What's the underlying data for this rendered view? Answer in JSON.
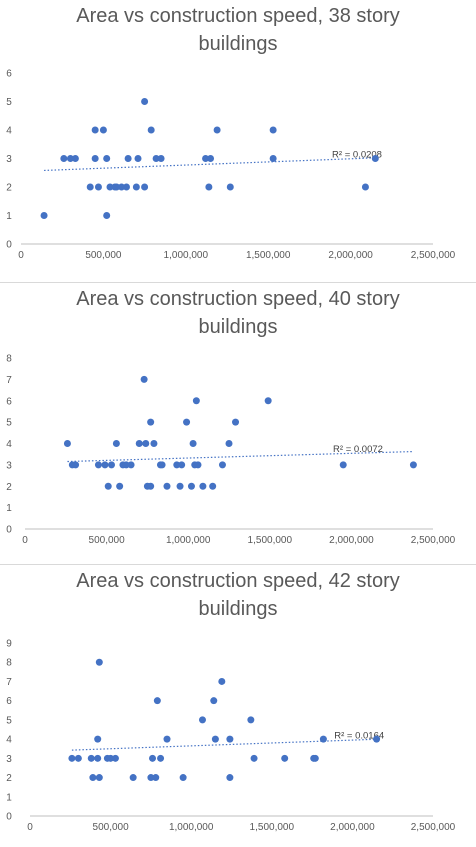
{
  "chart_data": [
    {
      "type": "scatter",
      "title_line1": "Area vs construction speed, 38 story",
      "title_line2": "buildings",
      "xlabel": "",
      "ylabel": "",
      "xlim": [
        0,
        2500000
      ],
      "ylim": [
        0,
        6
      ],
      "x_ticks": [
        "0",
        "500,000",
        "1,000,000",
        "1,500,000",
        "2,000,000",
        "2,500,000"
      ],
      "y_ticks": [
        "0",
        "1",
        "2",
        "3",
        "4",
        "5",
        "6"
      ],
      "grid": false,
      "trendline": {
        "type": "linear",
        "y_at_xmin": 2.55,
        "y_at_xmax": 3.1,
        "x_range": [
          140000,
          2150000
        ],
        "r2_label": "R² = 0.0208",
        "style": "dotted"
      },
      "points": [
        {
          "x": 140000,
          "y": 1
        },
        {
          "x": 260000,
          "y": 3
        },
        {
          "x": 300000,
          "y": 3
        },
        {
          "x": 330000,
          "y": 3
        },
        {
          "x": 420000,
          "y": 2
        },
        {
          "x": 450000,
          "y": 3
        },
        {
          "x": 450000,
          "y": 4
        },
        {
          "x": 470000,
          "y": 2
        },
        {
          "x": 500000,
          "y": 4
        },
        {
          "x": 520000,
          "y": 1
        },
        {
          "x": 520000,
          "y": 3
        },
        {
          "x": 540000,
          "y": 2
        },
        {
          "x": 570000,
          "y": 2
        },
        {
          "x": 580000,
          "y": 2
        },
        {
          "x": 610000,
          "y": 2
        },
        {
          "x": 640000,
          "y": 2
        },
        {
          "x": 650000,
          "y": 3
        },
        {
          "x": 700000,
          "y": 2
        },
        {
          "x": 710000,
          "y": 3
        },
        {
          "x": 750000,
          "y": 5
        },
        {
          "x": 750000,
          "y": 2
        },
        {
          "x": 790000,
          "y": 4
        },
        {
          "x": 820000,
          "y": 3
        },
        {
          "x": 850000,
          "y": 3
        },
        {
          "x": 1120000,
          "y": 3
        },
        {
          "x": 1140000,
          "y": 2
        },
        {
          "x": 1150000,
          "y": 3
        },
        {
          "x": 1190000,
          "y": 4
        },
        {
          "x": 1270000,
          "y": 2
        },
        {
          "x": 1530000,
          "y": 3
        },
        {
          "x": 1530000,
          "y": 4
        },
        {
          "x": 2090000,
          "y": 2
        },
        {
          "x": 2150000,
          "y": 3
        }
      ]
    },
    {
      "type": "scatter",
      "title_line1": "Area vs construction speed, 40 story",
      "title_line2": "buildings",
      "xlabel": "",
      "ylabel": "",
      "xlim": [
        0,
        2500000
      ],
      "ylim": [
        0,
        8
      ],
      "x_ticks": [
        "0",
        "500,000",
        "1,000,000",
        "1,500,000",
        "2,000,000",
        "2,500,000"
      ],
      "y_ticks": [
        "0",
        "1",
        "2",
        "3",
        "4",
        "5",
        "6",
        "7",
        "8"
      ],
      "grid": false,
      "trendline": {
        "type": "linear",
        "y_at_xmin": 3.1,
        "y_at_xmax": 3.65,
        "x_range": [
          260000,
          2380000
        ],
        "r2_label": "R² = 0.0072",
        "style": "dotted"
      },
      "points": [
        {
          "x": 260000,
          "y": 4
        },
        {
          "x": 290000,
          "y": 3
        },
        {
          "x": 310000,
          "y": 3
        },
        {
          "x": 450000,
          "y": 3
        },
        {
          "x": 490000,
          "y": 3
        },
        {
          "x": 510000,
          "y": 2
        },
        {
          "x": 530000,
          "y": 3
        },
        {
          "x": 560000,
          "y": 4
        },
        {
          "x": 580000,
          "y": 2
        },
        {
          "x": 600000,
          "y": 3
        },
        {
          "x": 620000,
          "y": 3
        },
        {
          "x": 650000,
          "y": 3
        },
        {
          "x": 700000,
          "y": 4
        },
        {
          "x": 730000,
          "y": 7
        },
        {
          "x": 740000,
          "y": 4
        },
        {
          "x": 750000,
          "y": 2
        },
        {
          "x": 770000,
          "y": 2
        },
        {
          "x": 770000,
          "y": 5
        },
        {
          "x": 790000,
          "y": 4
        },
        {
          "x": 830000,
          "y": 3
        },
        {
          "x": 840000,
          "y": 3
        },
        {
          "x": 870000,
          "y": 2
        },
        {
          "x": 930000,
          "y": 3
        },
        {
          "x": 950000,
          "y": 2
        },
        {
          "x": 960000,
          "y": 3
        },
        {
          "x": 990000,
          "y": 5
        },
        {
          "x": 1020000,
          "y": 2
        },
        {
          "x": 1030000,
          "y": 4
        },
        {
          "x": 1040000,
          "y": 3
        },
        {
          "x": 1050000,
          "y": 6
        },
        {
          "x": 1060000,
          "y": 3
        },
        {
          "x": 1090000,
          "y": 2
        },
        {
          "x": 1150000,
          "y": 2
        },
        {
          "x": 1210000,
          "y": 3
        },
        {
          "x": 1250000,
          "y": 4
        },
        {
          "x": 1290000,
          "y": 5
        },
        {
          "x": 1490000,
          "y": 6
        },
        {
          "x": 1950000,
          "y": 3
        },
        {
          "x": 2380000,
          "y": 3
        }
      ]
    },
    {
      "type": "scatter",
      "title_line1": "Area vs construction speed, 42 story",
      "title_line2": "buildings",
      "xlabel": "",
      "ylabel": "",
      "xlim": [
        0,
        2500000
      ],
      "ylim": [
        0,
        9
      ],
      "x_ticks": [
        "0",
        "500,000",
        "1,000,000",
        "1,500,000",
        "2,000,000",
        "2,500,000"
      ],
      "y_ticks": [
        "0",
        "1",
        "2",
        "3",
        "4",
        "5",
        "6",
        "7",
        "8",
        "9"
      ],
      "grid": false,
      "trendline": {
        "type": "linear",
        "y_at_xmin": 3.35,
        "y_at_xmax": 4.1,
        "x_range": [
          260000,
          2150000
        ],
        "r2_label": "R² = 0.0164",
        "style": "dotted"
      },
      "points": [
        {
          "x": 260000,
          "y": 3
        },
        {
          "x": 300000,
          "y": 3
        },
        {
          "x": 380000,
          "y": 3
        },
        {
          "x": 390000,
          "y": 2
        },
        {
          "x": 420000,
          "y": 3
        },
        {
          "x": 420000,
          "y": 4
        },
        {
          "x": 430000,
          "y": 8
        },
        {
          "x": 430000,
          "y": 2
        },
        {
          "x": 480000,
          "y": 3
        },
        {
          "x": 500000,
          "y": 3
        },
        {
          "x": 530000,
          "y": 3
        },
        {
          "x": 640000,
          "y": 2
        },
        {
          "x": 750000,
          "y": 2
        },
        {
          "x": 760000,
          "y": 3
        },
        {
          "x": 780000,
          "y": 2
        },
        {
          "x": 790000,
          "y": 6
        },
        {
          "x": 810000,
          "y": 3
        },
        {
          "x": 850000,
          "y": 4
        },
        {
          "x": 950000,
          "y": 2
        },
        {
          "x": 1070000,
          "y": 5
        },
        {
          "x": 1140000,
          "y": 6
        },
        {
          "x": 1150000,
          "y": 4
        },
        {
          "x": 1190000,
          "y": 7
        },
        {
          "x": 1240000,
          "y": 4
        },
        {
          "x": 1240000,
          "y": 2
        },
        {
          "x": 1370000,
          "y": 5
        },
        {
          "x": 1390000,
          "y": 3
        },
        {
          "x": 1580000,
          "y": 3
        },
        {
          "x": 1760000,
          "y": 3
        },
        {
          "x": 1770000,
          "y": 3
        },
        {
          "x": 1820000,
          "y": 4
        },
        {
          "x": 2150000,
          "y": 4
        }
      ]
    }
  ],
  "colors": {
    "marker": "#4472c4",
    "trendline": "#4472c4",
    "axis": "#bfbfbf",
    "title": "#595959",
    "tick": "#595959",
    "separator": "#d9d9d9"
  }
}
